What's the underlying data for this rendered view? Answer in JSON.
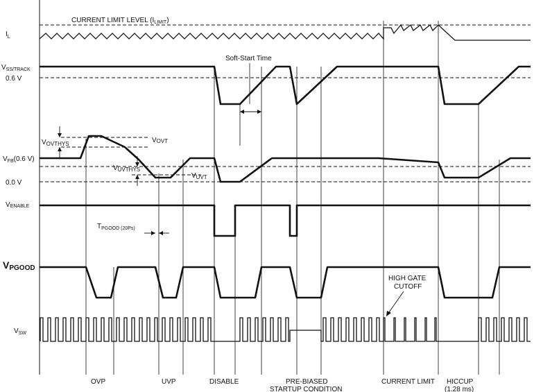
{
  "signals": {
    "il": "I",
    "il_sub": "L",
    "vss": "V",
    "vss_sub": "SS/TRACK",
    "v06": "0.6 V",
    "vfb": "V",
    "vfb_sub": "FB",
    "vfb_suffix": "(0.6 V)",
    "v00": "0.0 V",
    "venable": "V",
    "venable_sub": "ENABLE",
    "vpgood": "V",
    "vpgood_sub": "PGOOD",
    "vsw": "V",
    "vsw_sub": "SW"
  },
  "annotations": {
    "current_limit_level": "CURRENT LIMIT LEVEL (I",
    "current_limit_level_sub": "LIMIT",
    "current_limit_level_close": ")",
    "soft_start_time": "Soft-Start Time",
    "vovthys": "V",
    "vovthys_sub": "OVTHYS",
    "vovt": "V",
    "vovt_sub": "OVT",
    "vuvthys": "V",
    "vuvthys_sub": "UVTHYS",
    "vuvt": "V",
    "vuvt_sub": "UVT",
    "tpgood": "T",
    "tpgood_sub": "PGOOD (20Ps)",
    "high_gate_line1": "HIGH GATE",
    "high_gate_line2": "CUTOFF"
  },
  "events": {
    "ovp": "OVP",
    "uvp": "UVP",
    "disable": "DISABLE",
    "prebiased_line1": "PRE-BIASED",
    "prebiased_line2": "STARTUP CONDITION",
    "current_limit": "CURRENT LIMIT",
    "hiccup_line1": "HICCUP",
    "hiccup_line2": "(1.28 ms)"
  }
}
